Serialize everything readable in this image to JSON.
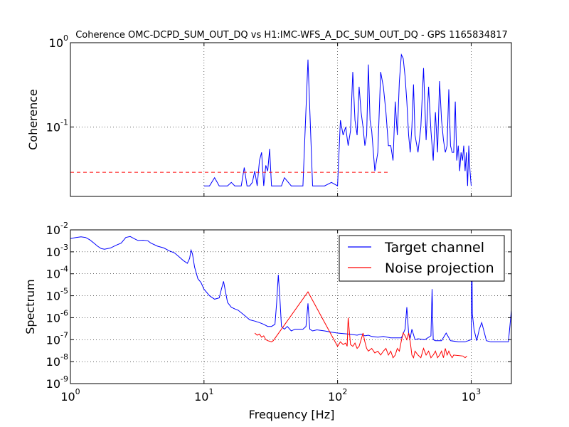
{
  "chart_data": [
    {
      "type": "line",
      "title": "Coherence OMC-DCPD_SUM_OUT_DQ vs H1:IMC-WFS_A_DC_SUM_OUT_DQ - GPS 1165834817",
      "xlabel": "",
      "ylabel": "Coherence",
      "xscale": "log",
      "yscale": "log",
      "xlim": [
        1,
        2000
      ],
      "ylim": [
        0.015,
        1
      ],
      "grid": true,
      "y_ticks": [
        {
          "value": 1,
          "label_base": "10",
          "label_exp": "0"
        },
        {
          "value": 0.1,
          "label_base": "10",
          "label_exp": "-1"
        }
      ],
      "series": [
        {
          "color": "#0000ff",
          "x": [
            10,
            11,
            12,
            13,
            13.5,
            14,
            15,
            16,
            17,
            18,
            19,
            20,
            21,
            22,
            23,
            24,
            25,
            26,
            27,
            28,
            29,
            30,
            31,
            32,
            33,
            35,
            38,
            40,
            45,
            50,
            55,
            60,
            65,
            70,
            80,
            90,
            100,
            105,
            110,
            115,
            120,
            125,
            130,
            135,
            140,
            145,
            150,
            155,
            160,
            165,
            170,
            175,
            180,
            190,
            200,
            210,
            220,
            230,
            240,
            250,
            260,
            270,
            280,
            290,
            300,
            310,
            320,
            330,
            340,
            350,
            360,
            370,
            380,
            400,
            420,
            440,
            460,
            480,
            500,
            520,
            540,
            560,
            580,
            600,
            620,
            640,
            660,
            680,
            700,
            720,
            740,
            760,
            780,
            800,
            820,
            840,
            860,
            880,
            900,
            920,
            940,
            960,
            980,
            1000
          ],
          "y": [
            0.02,
            0.02,
            0.025,
            0.02,
            0.02,
            0.02,
            0.02,
            0.022,
            0.02,
            0.02,
            0.02,
            0.033,
            0.02,
            0.02,
            0.022,
            0.03,
            0.02,
            0.04,
            0.05,
            0.02,
            0.035,
            0.03,
            0.055,
            0.02,
            0.02,
            0.02,
            0.02,
            0.025,
            0.02,
            0.02,
            0.02,
            0.63,
            0.02,
            0.02,
            0.02,
            0.022,
            0.02,
            0.12,
            0.08,
            0.1,
            0.06,
            0.09,
            0.45,
            0.12,
            0.08,
            0.3,
            0.15,
            0.1,
            0.06,
            0.08,
            0.55,
            0.12,
            0.09,
            0.03,
            0.05,
            0.45,
            0.3,
            0.15,
            0.06,
            0.06,
            0.04,
            0.2,
            0.08,
            0.35,
            0.72,
            0.65,
            0.4,
            0.2,
            0.08,
            0.05,
            0.1,
            0.32,
            0.08,
            0.05,
            0.1,
            0.5,
            0.07,
            0.3,
            0.09,
            0.04,
            0.15,
            0.05,
            0.35,
            0.12,
            0.07,
            0.05,
            0.06,
            0.28,
            0.06,
            0.05,
            0.05,
            0.2,
            0.04,
            0.06,
            0.03,
            0.05,
            0.04,
            0.06,
            0.03,
            0.05,
            0.02,
            0.06,
            0.03,
            0.02
          ]
        },
        {
          "color": "#ff0000",
          "style": "dashed",
          "x": [
            1,
            240
          ],
          "y": [
            0.029,
            0.029
          ]
        }
      ]
    },
    {
      "type": "line",
      "title": "",
      "xlabel": "Frequency [Hz]",
      "ylabel": "Spectrum",
      "xscale": "log",
      "yscale": "log",
      "xlim": [
        1,
        2000
      ],
      "ylim": [
        1e-09,
        0.01
      ],
      "grid": true,
      "legend": "top-right",
      "x_ticks": [
        {
          "value": 1,
          "label_base": "10",
          "label_exp": "0"
        },
        {
          "value": 10,
          "label_base": "10",
          "label_exp": "1"
        },
        {
          "value": 100,
          "label_base": "10",
          "label_exp": "2"
        },
        {
          "value": 1000,
          "label_base": "10",
          "label_exp": "3"
        }
      ],
      "y_ticks": [
        {
          "value": 0.01,
          "label_base": "10",
          "label_exp": "-2"
        },
        {
          "value": 0.001,
          "label_base": "10",
          "label_exp": "-3"
        },
        {
          "value": 0.0001,
          "label_base": "10",
          "label_exp": "-4"
        },
        {
          "value": 1e-05,
          "label_base": "10",
          "label_exp": "-5"
        },
        {
          "value": 1e-06,
          "label_base": "10",
          "label_exp": "-6"
        },
        {
          "value": 1e-07,
          "label_base": "10",
          "label_exp": "-7"
        },
        {
          "value": 1e-08,
          "label_base": "10",
          "label_exp": "-8"
        },
        {
          "value": 1e-09,
          "label_base": "10",
          "label_exp": "-9"
        }
      ],
      "series": [
        {
          "name": "Target channel",
          "color": "#0000ff",
          "x": [
            1,
            1.1,
            1.2,
            1.3,
            1.4,
            1.5,
            1.6,
            1.7,
            1.8,
            2.0,
            2.2,
            2.4,
            2.6,
            2.8,
            3.0,
            3.2,
            3.5,
            3.8,
            4.0,
            4.5,
            5.0,
            5.5,
            6.0,
            6.5,
            7.0,
            7.5,
            7.8,
            8.0,
            8.2,
            8.5,
            9.0,
            9.5,
            10,
            11,
            12,
            13,
            13.5,
            14,
            14.5,
            15,
            16,
            17,
            18,
            20,
            22,
            24,
            26,
            28,
            30,
            32,
            34,
            35,
            36,
            37,
            38,
            40,
            42,
            45,
            48,
            50,
            55,
            58,
            60,
            62,
            65,
            70,
            80,
            90,
            100,
            120,
            140,
            150,
            160,
            170,
            180,
            200,
            220,
            250,
            280,
            300,
            320,
            330,
            340,
            350,
            360,
            380,
            400,
            450,
            500,
            510,
            520,
            540,
            560,
            600,
            650,
            700,
            800,
            900,
            1000,
            1010,
            1020,
            1050,
            1100,
            1150,
            1200,
            1300,
            1400,
            1500,
            1600,
            1700,
            1800,
            1900,
            2000
          ],
          "y": [
            0.004,
            0.0045,
            0.0048,
            0.0045,
            0.0035,
            0.0025,
            0.0018,
            0.0014,
            0.0013,
            0.0015,
            0.002,
            0.0025,
            0.0045,
            0.005,
            0.004,
            0.0033,
            0.0034,
            0.0032,
            0.0025,
            0.0018,
            0.0015,
            0.0011,
            0.0009,
            0.0006,
            0.0004,
            0.0003,
            0.0005,
            0.0012,
            0.0008,
            0.0002,
            6e-05,
            4e-05,
            2e-05,
            1e-05,
            7e-06,
            8e-06,
            2e-05,
            4.5e-05,
            1.5e-05,
            5e-06,
            3e-06,
            2.5e-06,
            2.2e-06,
            1.3e-06,
            8e-07,
            7e-07,
            6e-07,
            5e-07,
            4e-07,
            4e-07,
            5e-07,
            5e-06,
            9e-05,
            8e-06,
            4e-07,
            3e-07,
            4e-07,
            2.5e-07,
            3e-07,
            3e-07,
            3e-07,
            4e-07,
            4.5e-06,
            3e-07,
            2.5e-07,
            2.8e-07,
            2.5e-07,
            2.2e-07,
            2e-07,
            1.8e-07,
            1.6e-07,
            1.8e-07,
            1.5e-07,
            1.6e-07,
            1.4e-07,
            1.3e-07,
            1.4e-07,
            1.2e-07,
            1.2e-07,
            1.2e-07,
            3e-07,
            3e-06,
            2e-07,
            1.2e-07,
            3e-07,
            1e-07,
            1.1e-07,
            1e-07,
            1.5e-07,
            2e-05,
            1e-07,
            9e-08,
            9e-08,
            9e-08,
            2e-07,
            9e-08,
            8e-08,
            8e-08,
            1e-07,
            0.003,
            1.5e-06,
            3e-07,
            9e-08,
            3e-07,
            6e-07,
            9e-08,
            8e-08,
            8e-08,
            8e-08,
            8e-08,
            8e-08,
            8e-08,
            2.2e-06
          ]
        },
        {
          "name": "Noise projection",
          "color": "#ff0000",
          "x": [
            24,
            25,
            26,
            27,
            28,
            29,
            30,
            32,
            33,
            60,
            100,
            105,
            110,
            115,
            118,
            120,
            125,
            130,
            135,
            140,
            145,
            150,
            155,
            160,
            165,
            170,
            180,
            190,
            200,
            210,
            220,
            230,
            240,
            250,
            260,
            270,
            280,
            290,
            300,
            310,
            320,
            330,
            340,
            350,
            360,
            370,
            380,
            400,
            420,
            440,
            460,
            480,
            500,
            520,
            540,
            560,
            580,
            600,
            620,
            640,
            660,
            680,
            700,
            720,
            740,
            870,
            900,
            930
          ],
          "y": [
            2e-07,
            1.6e-07,
            1.8e-07,
            1.3e-07,
            1.5e-07,
            1e-07,
            9e-08,
            8e-08,
            9e-08,
            1.5e-05,
            5e-08,
            8e-08,
            6e-08,
            7e-08,
            5e-08,
            1e-06,
            6e-08,
            5e-08,
            7e-08,
            4e-08,
            5e-08,
            1e-07,
            2e-07,
            8e-08,
            4e-08,
            3e-08,
            4e-08,
            2.5e-08,
            3e-08,
            2e-08,
            3e-08,
            4e-08,
            2e-08,
            3e-08,
            1.5e-08,
            2e-08,
            4e-08,
            3e-08,
            9e-08,
            2e-07,
            1.5e-07,
            1e-07,
            2e-07,
            8e-08,
            2e-08,
            1.5e-08,
            3e-08,
            2e-08,
            1.5e-08,
            4e-08,
            2e-08,
            3e-08,
            1.5e-08,
            2e-08,
            3e-08,
            1.5e-08,
            2e-08,
            3e-08,
            1.5e-08,
            4e-08,
            2e-08,
            3e-08,
            2e-08,
            1.5e-08,
            2e-08,
            1.8e-08,
            1.5e-08,
            1.8e-08
          ]
        }
      ]
    }
  ]
}
